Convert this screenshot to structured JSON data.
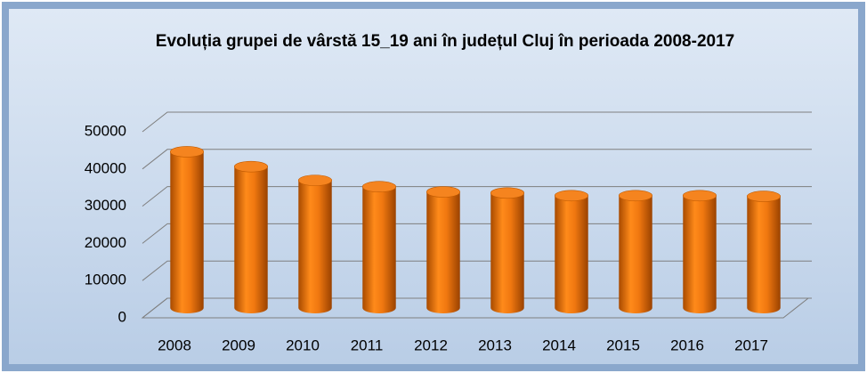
{
  "chart_data": {
    "type": "bar",
    "title": "Evoluția grupei de vârstă 15_19 ani în județul Cluj în perioada 2008-2017",
    "categories": [
      "2008",
      "2009",
      "2010",
      "2011",
      "2012",
      "2013",
      "2014",
      "2015",
      "2016",
      "2017"
    ],
    "values": [
      42000,
      38000,
      34300,
      32600,
      31200,
      30900,
      30200,
      30200,
      30200,
      30000
    ],
    "color": "#e36c09",
    "ylim": [
      0,
      50000
    ],
    "yticks": [
      0,
      10000,
      20000,
      30000,
      40000,
      50000
    ],
    "grid": true
  }
}
